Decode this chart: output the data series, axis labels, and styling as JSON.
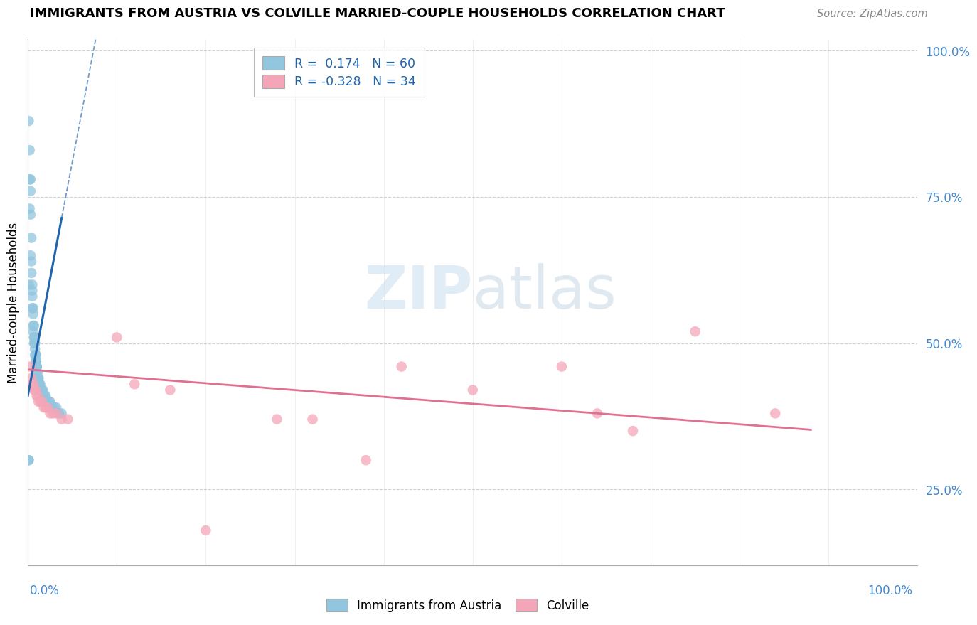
{
  "title": "IMMIGRANTS FROM AUSTRIA VS COLVILLE MARRIED-COUPLE HOUSEHOLDS CORRELATION CHART",
  "source": "Source: ZipAtlas.com",
  "ylabel": "Married-couple Households",
  "legend_blue_r": "0.174",
  "legend_blue_n": "60",
  "legend_pink_r": "-0.328",
  "legend_pink_n": "34",
  "legend_label_blue": "Immigrants from Austria",
  "legend_label_pink": "Colville",
  "blue_color": "#92c5de",
  "pink_color": "#f4a6b8",
  "blue_line_color": "#2166ac",
  "pink_line_color": "#e07090",
  "blue_x": [
    0.001,
    0.001,
    0.002,
    0.002,
    0.003,
    0.003,
    0.003,
    0.004,
    0.004,
    0.005,
    0.005,
    0.005,
    0.006,
    0.006,
    0.006,
    0.007,
    0.007,
    0.007,
    0.008,
    0.008,
    0.008,
    0.009,
    0.009,
    0.009,
    0.01,
    0.01,
    0.01,
    0.01,
    0.011,
    0.011,
    0.012,
    0.012,
    0.013,
    0.013,
    0.014,
    0.015,
    0.016,
    0.017,
    0.018,
    0.019,
    0.02,
    0.021,
    0.022,
    0.024,
    0.025,
    0.027,
    0.03,
    0.032,
    0.035,
    0.038,
    0.001,
    0.001,
    0.002,
    0.003,
    0.004,
    0.005,
    0.006,
    0.007,
    0.008,
    0.009
  ],
  "blue_y": [
    0.3,
    0.3,
    0.83,
    0.78,
    0.78,
    0.76,
    0.72,
    0.68,
    0.64,
    0.6,
    0.58,
    0.56,
    0.55,
    0.53,
    0.52,
    0.51,
    0.51,
    0.5,
    0.5,
    0.49,
    0.48,
    0.48,
    0.47,
    0.47,
    0.46,
    0.46,
    0.46,
    0.45,
    0.45,
    0.44,
    0.44,
    0.44,
    0.43,
    0.43,
    0.43,
    0.42,
    0.42,
    0.42,
    0.41,
    0.41,
    0.41,
    0.4,
    0.4,
    0.4,
    0.4,
    0.39,
    0.39,
    0.39,
    0.38,
    0.38,
    0.88,
    0.6,
    0.73,
    0.65,
    0.62,
    0.59,
    0.56,
    0.53,
    0.5,
    0.48
  ],
  "pink_x": [
    0.003,
    0.004,
    0.005,
    0.006,
    0.007,
    0.008,
    0.009,
    0.01,
    0.011,
    0.012,
    0.014,
    0.016,
    0.018,
    0.02,
    0.022,
    0.025,
    0.028,
    0.032,
    0.038,
    0.045,
    0.1,
    0.12,
    0.16,
    0.2,
    0.28,
    0.32,
    0.38,
    0.42,
    0.5,
    0.6,
    0.64,
    0.68,
    0.75,
    0.84
  ],
  "pink_y": [
    0.46,
    0.44,
    0.43,
    0.43,
    0.42,
    0.42,
    0.42,
    0.41,
    0.41,
    0.4,
    0.4,
    0.4,
    0.39,
    0.39,
    0.39,
    0.38,
    0.38,
    0.38,
    0.37,
    0.37,
    0.51,
    0.43,
    0.42,
    0.18,
    0.37,
    0.37,
    0.3,
    0.46,
    0.42,
    0.46,
    0.38,
    0.35,
    0.52,
    0.38
  ],
  "blue_line_x0": 0.0,
  "blue_line_x_solid_end": 0.038,
  "blue_line_x_dashed_end": 0.32,
  "blue_line_slope": 8.0,
  "blue_line_intercept": 0.41,
  "pink_line_x0": 0.0,
  "pink_line_x1": 0.88,
  "pink_line_y0": 0.455,
  "pink_line_y1": 0.352,
  "xlim": [
    0.0,
    1.0
  ],
  "ylim": [
    0.12,
    1.02
  ],
  "yticks": [
    0.25,
    0.5,
    0.75,
    1.0
  ],
  "ytick_labels": [
    "25.0%",
    "50.0%",
    "75.0%",
    "100.0%"
  ]
}
